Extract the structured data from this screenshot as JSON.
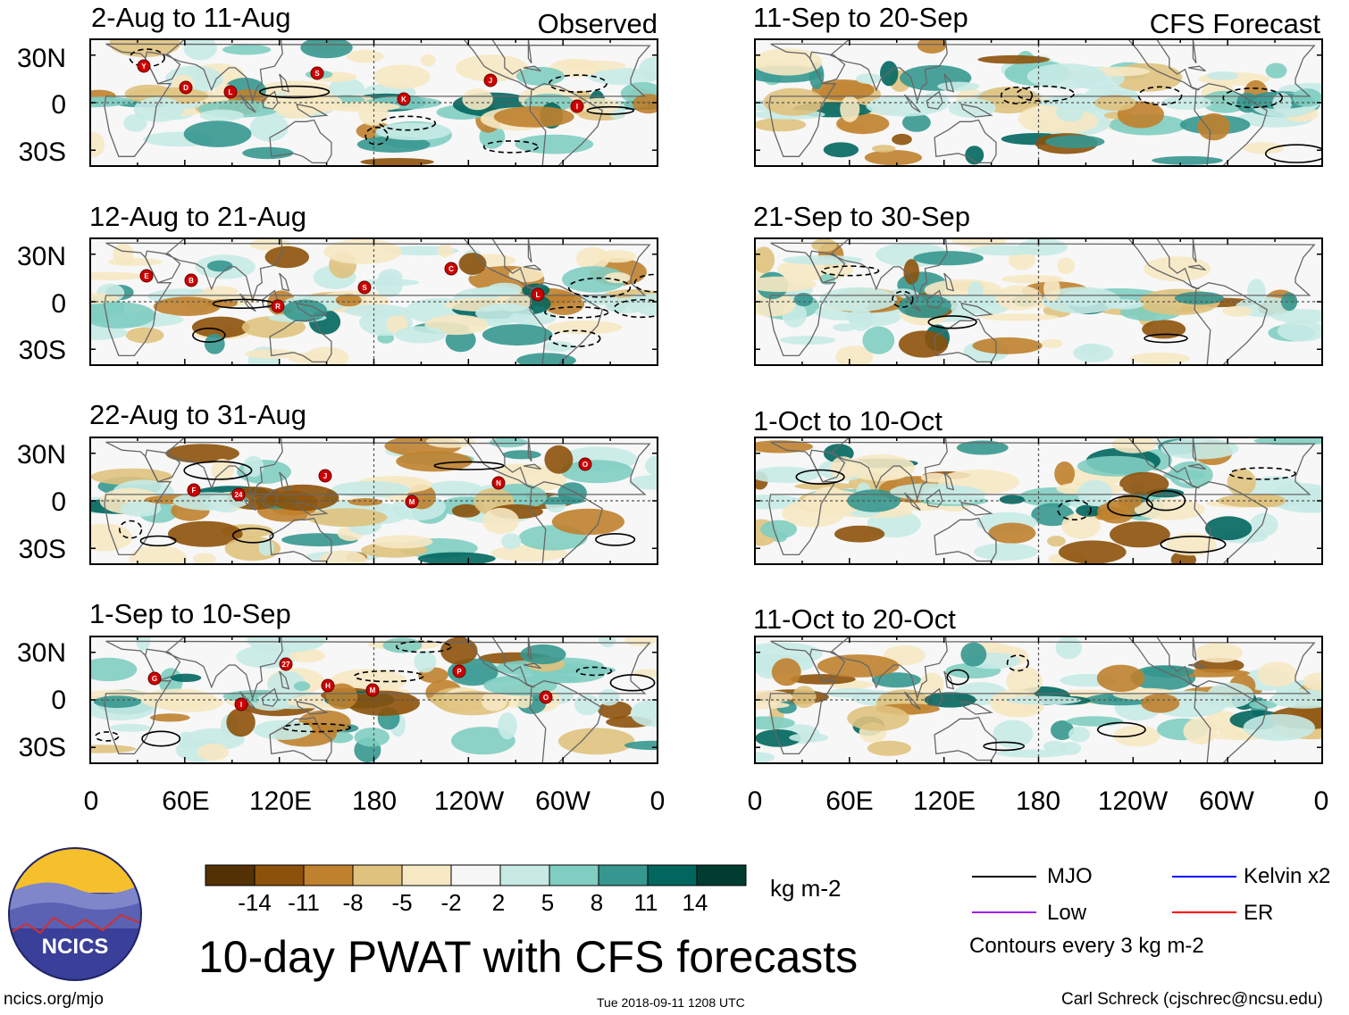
{
  "title": "10-day PWAT with CFS forecasts",
  "left_column_label": "Observed",
  "right_column_label": "CFS Forecast",
  "lat_labels": [
    "30N",
    "0",
    "30S"
  ],
  "lon_labels": [
    "0",
    "60E",
    "120E",
    "180",
    "120W",
    "60W",
    "0"
  ],
  "panels_observed": [
    {
      "period": "2-Aug to 11-Aug",
      "markers": [
        "Y",
        "L",
        "S",
        "K",
        "J",
        "I",
        "D"
      ]
    },
    {
      "period": "12-Aug to 21-Aug",
      "markers": [
        "B",
        "R",
        "S",
        "C",
        "L",
        "E"
      ]
    },
    {
      "period": "22-Aug to 31-Aug",
      "markers": [
        "24",
        "J",
        "M",
        "N",
        "O",
        "F"
      ]
    },
    {
      "period": "1-Sep to 10-Sep",
      "markers": [
        "27",
        "M",
        "P",
        "O",
        "G",
        "I",
        "H"
      ]
    }
  ],
  "panels_forecast": [
    {
      "period": "11-Sep to 20-Sep"
    },
    {
      "period": "21-Sep to 30-Sep"
    },
    {
      "period": "1-Oct to 10-Oct"
    },
    {
      "period": "11-Oct to 20-Oct"
    }
  ],
  "colorbar": {
    "labels": [
      "-14",
      "-11",
      "-8",
      "-5",
      "-2",
      "2",
      "5",
      "8",
      "11",
      "14"
    ],
    "units": "kg m-2",
    "colors": [
      "#543005",
      "#8c510a",
      "#bf812d",
      "#dfc27d",
      "#f6e8c3",
      "#f7f7f7",
      "#c7eae5",
      "#80cdc1",
      "#35978f",
      "#01665e",
      "#003c30"
    ]
  },
  "legend": {
    "items": [
      {
        "label": "MJO",
        "color": "#000000"
      },
      {
        "label": "Kelvin x2",
        "color": "#0000ff"
      },
      {
        "label": "Low",
        "color": "#a020f0"
      },
      {
        "label": "ER",
        "color": "#ff0000"
      }
    ],
    "note": "Contours every 3 kg m-2"
  },
  "logo_text": "NCICS",
  "footer": {
    "url": "ncics.org/mjo",
    "timestamp": "Tue 2018-09-11 1208 UTC",
    "author": "Carl Schreck (cjschrec@ncsu.edu)"
  }
}
